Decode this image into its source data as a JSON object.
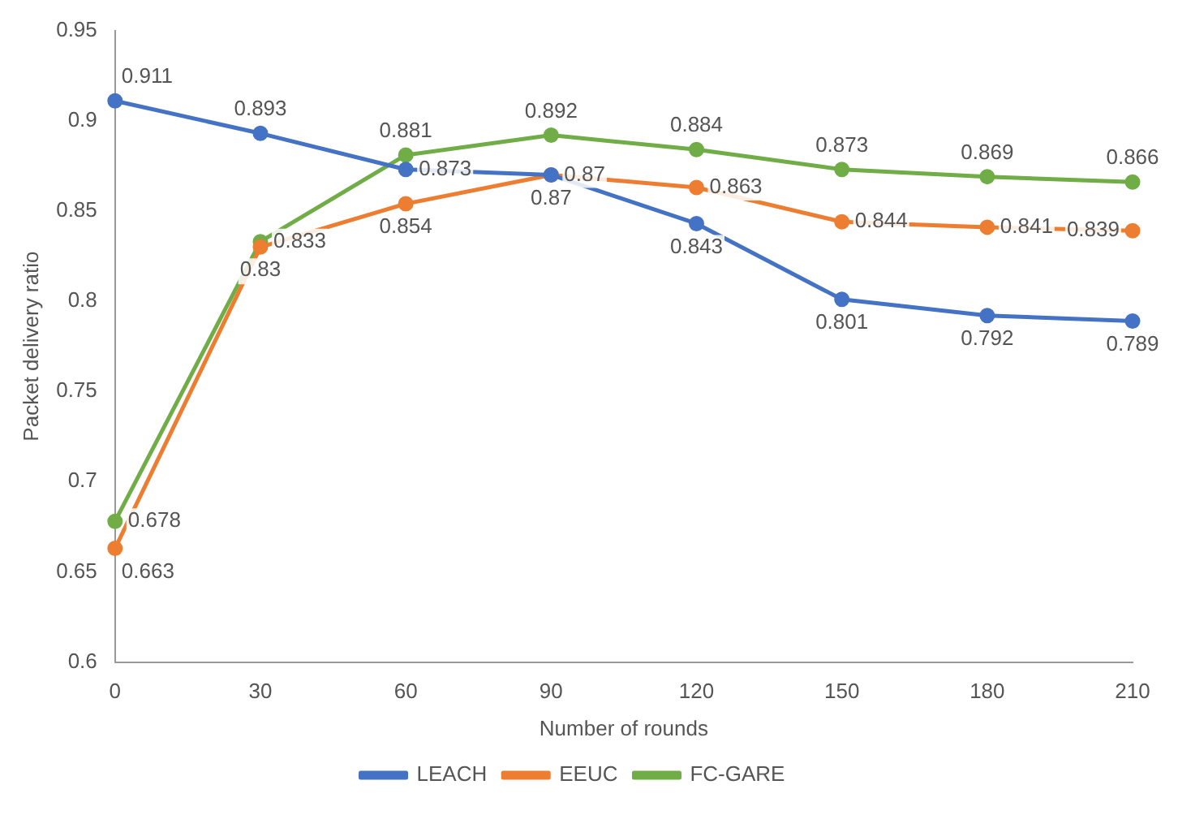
{
  "chart_data": {
    "type": "line",
    "xlabel": "Number of rounds",
    "ylabel": "Packet delivery ratio",
    "categories": [
      "0",
      "30",
      "60",
      "90",
      "120",
      "150",
      "180",
      "210"
    ],
    "series": [
      {
        "name": "LEACH",
        "color": "#4472c4",
        "values": [
          0.911,
          0.893,
          0.873,
          0.87,
          0.843,
          0.801,
          0.792,
          0.789
        ]
      },
      {
        "name": "EEUC",
        "color": "#ed7d31",
        "values": [
          0.663,
          0.83,
          0.854,
          0.87,
          0.863,
          0.844,
          0.841,
          0.839
        ]
      },
      {
        "name": "FC-GARE",
        "color": "#70ad47",
        "values": [
          0.678,
          0.833,
          0.881,
          0.892,
          0.884,
          0.873,
          0.869,
          0.866
        ]
      }
    ],
    "ylim": [
      0.6,
      0.95
    ],
    "yticks": [
      0.6,
      0.65,
      0.7,
      0.75,
      0.8,
      0.85,
      0.9,
      0.95
    ],
    "grid": false,
    "legend": "bottom",
    "marker": "circle",
    "line_style": "solid",
    "data_labels": true
  }
}
